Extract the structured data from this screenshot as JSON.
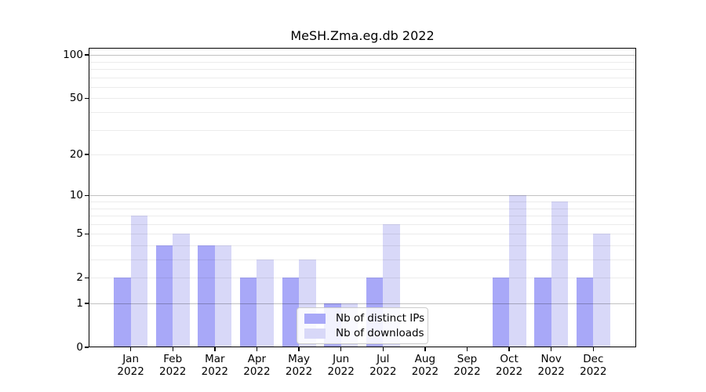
{
  "title": "MeSH.Zma.eg.db 2022",
  "chart_data": {
    "type": "bar",
    "title": "MeSH.Zma.eg.db 2022",
    "categories": [
      "Jan 2022",
      "Feb 2022",
      "Mar 2022",
      "Apr 2022",
      "May 2022",
      "Jun 2022",
      "Jul 2022",
      "Aug 2022",
      "Sep 2022",
      "Oct 2022",
      "Nov 2022",
      "Dec 2022"
    ],
    "series": [
      {
        "name": "Nb of distinct IPs",
        "color": "#a8a8f8",
        "values": [
          2,
          4,
          4,
          2,
          2,
          1,
          2,
          0,
          0,
          2,
          2,
          2
        ]
      },
      {
        "name": "Nb of downloads",
        "color": "#d8d8f8",
        "values": [
          7,
          5,
          4,
          3,
          3,
          1,
          6,
          0,
          0,
          10,
          9,
          5
        ]
      }
    ],
    "xlabel": "",
    "ylabel": "",
    "y_scale": "log10(1+x)",
    "ylim": [
      0,
      112
    ],
    "y_ticks": [
      0,
      1,
      2,
      5,
      10,
      20,
      50,
      100
    ],
    "major_gridlines": [
      1,
      10,
      100
    ],
    "minor_gridlines": [
      2,
      3,
      4,
      5,
      6,
      7,
      8,
      9,
      20,
      30,
      40,
      50,
      60,
      70,
      80,
      90
    ],
    "grid": true,
    "legend_position": "lower center"
  },
  "legend": {
    "items": [
      {
        "label": "Nb of distinct IPs"
      },
      {
        "label": "Nb of downloads"
      }
    ]
  }
}
